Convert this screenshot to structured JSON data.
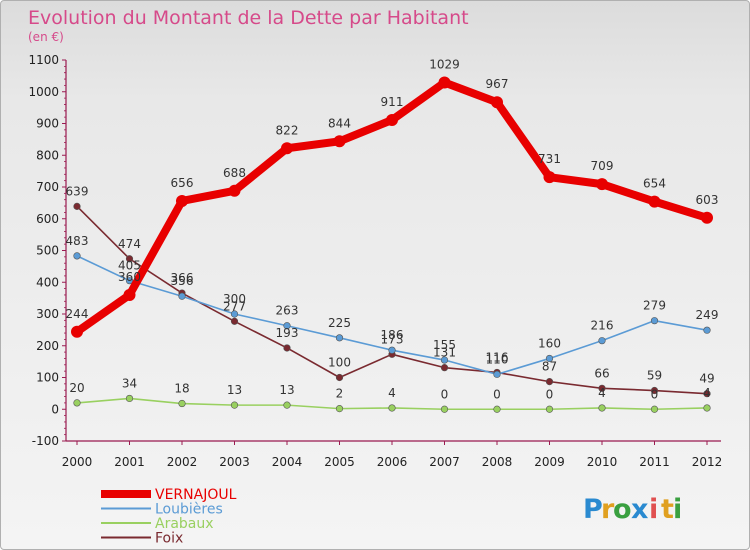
{
  "chart_data": {
    "type": "line",
    "title": "Evolution du Montant de la Dette par Habitant",
    "subtitle": "(en €)",
    "categories": [
      "2000",
      "2001",
      "2002",
      "2003",
      "2004",
      "2005",
      "2006",
      "2007",
      "2008",
      "2009",
      "2010",
      "2011",
      "2012"
    ],
    "ylim": [
      -100,
      1100
    ],
    "yticks": [
      -100,
      0,
      100,
      200,
      300,
      400,
      500,
      600,
      700,
      800,
      900,
      1000,
      1100
    ],
    "grid": false,
    "legend_position": "bottom-left",
    "series": [
      {
        "name": "VERNAJOUL",
        "color": "#e80000",
        "values": [
          244,
          360,
          656,
          688,
          822,
          844,
          911,
          1029,
          967,
          731,
          709,
          654,
          603
        ]
      },
      {
        "name": "Loubières",
        "color": "#5b9bd5",
        "values": [
          483,
          405,
          356,
          300,
          263,
          225,
          186,
          155,
          110,
          160,
          216,
          279,
          249
        ]
      },
      {
        "name": "Arabaux",
        "color": "#99d060",
        "values": [
          20,
          34,
          18,
          13,
          13,
          2,
          4,
          0,
          0,
          0,
          4,
          0,
          4
        ]
      },
      {
        "name": "Foix",
        "color": "#7a2a30",
        "values": [
          639,
          474,
          366,
          277,
          193,
          100,
          173,
          131,
          116,
          87,
          66,
          59,
          49
        ]
      }
    ]
  },
  "logo": {
    "letters": [
      "P",
      "r",
      "o",
      "x",
      "i",
      "t",
      "i"
    ],
    "colors": [
      "#2a8ad0",
      "#e0a020",
      "#3aa040",
      "#2a8ad0",
      "#e05050",
      "#e0a020",
      "#3aa040"
    ]
  }
}
